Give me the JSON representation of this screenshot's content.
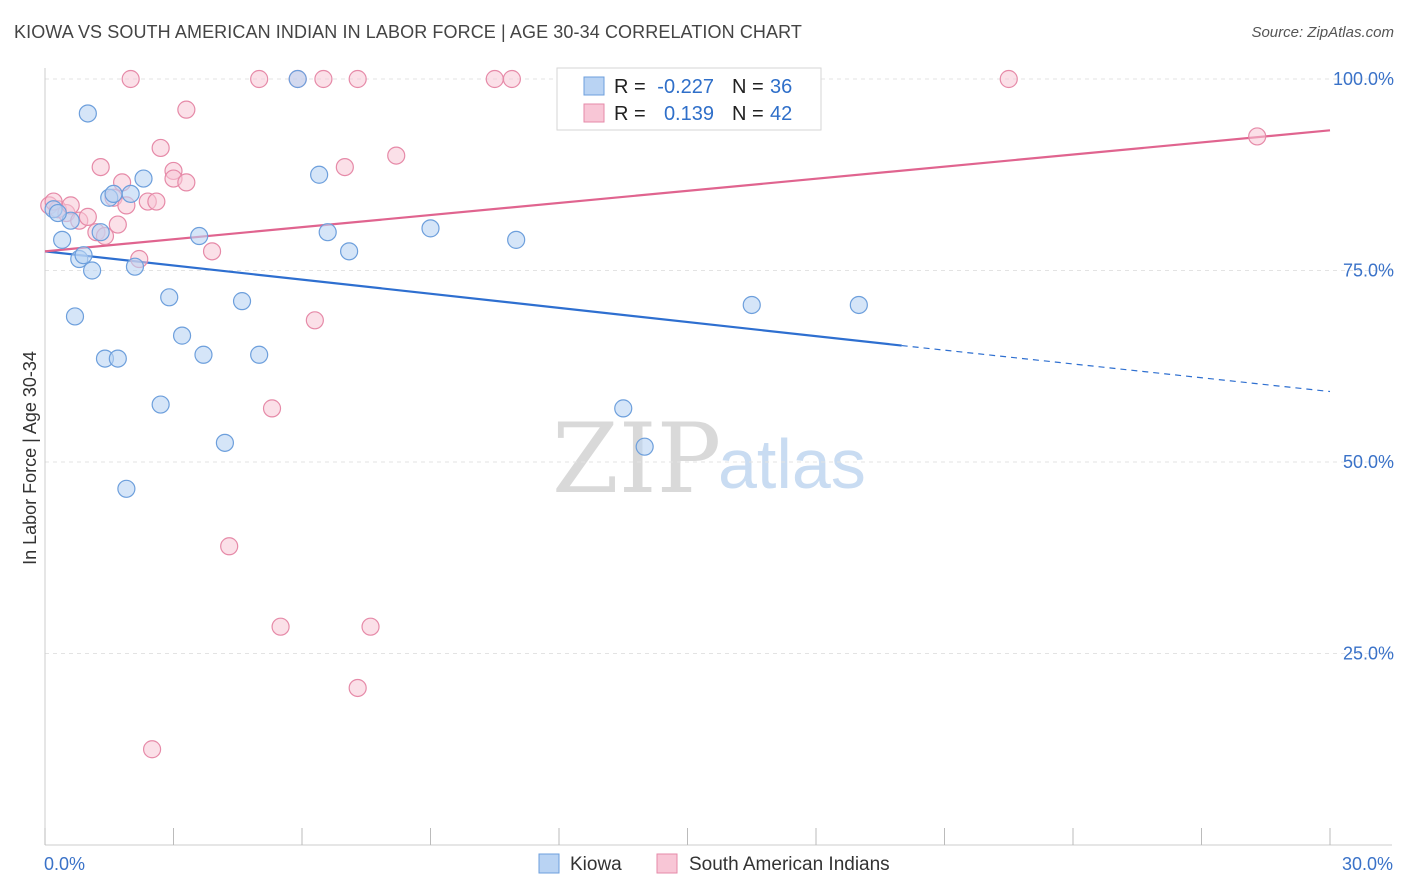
{
  "header": {
    "title": "KIOWA VS SOUTH AMERICAN INDIAN IN LABOR FORCE | AGE 30-34 CORRELATION CHART",
    "source": "Source: ZipAtlas.com"
  },
  "watermark": {
    "zip": "ZIP",
    "atlas": "atlas"
  },
  "colors": {
    "kiowa_fill": "#b9d3f3",
    "kiowa_stroke": "#6d9fdc",
    "kiowa_line": "#2e6fd0",
    "sai_fill": "#f8c6d6",
    "sai_stroke": "#e68aa8",
    "sai_line": "#e0648f",
    "tick_text": "#3a72c8",
    "grid": "#e3e3e3"
  },
  "stats": {
    "rows": [
      {
        "r_label": "R =",
        "r_value": "-0.227",
        "n_label": "N =",
        "n_value": "36"
      },
      {
        "r_label": "R =",
        "r_value": "0.139",
        "n_label": "N =",
        "n_value": "42"
      }
    ]
  },
  "chart_data": {
    "type": "scatter",
    "title": "KIOWA VS SOUTH AMERICAN INDIAN IN LABOR FORCE | AGE 30-34 CORRELATION CHART",
    "xlabel": "",
    "ylabel": "In Labor Force | Age 30-34",
    "xlim": [
      0,
      30
    ],
    "ylim": [
      0,
      100
    ],
    "x_tick_labels": [
      "0.0%",
      "30.0%"
    ],
    "y_ticks": [
      25,
      50,
      75,
      100
    ],
    "y_tick_labels": [
      "25.0%",
      "50.0%",
      "75.0%",
      "100.0%"
    ],
    "grid": true,
    "legend_position": "bottom",
    "series": [
      {
        "name": "Kiowa",
        "r": -0.227,
        "n": 36,
        "trend": {
          "x0": 0,
          "y0": 77.5,
          "x1": 20,
          "y1": 65.2,
          "dash_to_x": 30,
          "dash_to_y": 59.2
        },
        "points": [
          [
            0.2,
            83.0
          ],
          [
            0.4,
            79.0
          ],
          [
            0.6,
            81.5
          ],
          [
            0.7,
            69.0
          ],
          [
            0.8,
            76.5
          ],
          [
            1.0,
            95.5
          ],
          [
            1.1,
            75.0
          ],
          [
            1.3,
            80.0
          ],
          [
            1.4,
            63.5
          ],
          [
            1.5,
            84.5
          ],
          [
            1.6,
            85.0
          ],
          [
            1.7,
            63.5
          ],
          [
            1.9,
            46.5
          ],
          [
            2.0,
            85.0
          ],
          [
            2.1,
            75.5
          ],
          [
            2.3,
            87.0
          ],
          [
            2.7,
            57.5
          ],
          [
            2.9,
            71.5
          ],
          [
            3.2,
            66.5
          ],
          [
            3.6,
            79.5
          ],
          [
            3.7,
            64.0
          ],
          [
            4.2,
            52.5
          ],
          [
            4.6,
            71.0
          ],
          [
            5.0,
            64.0
          ],
          [
            5.9,
            100.0
          ],
          [
            6.4,
            87.5
          ],
          [
            6.6,
            80.0
          ],
          [
            7.1,
            77.5
          ],
          [
            9.0,
            80.5
          ],
          [
            11.0,
            79.0
          ],
          [
            13.5,
            57.0
          ],
          [
            14.0,
            52.0
          ],
          [
            16.5,
            70.5
          ],
          [
            19.0,
            70.5
          ],
          [
            0.3,
            82.5
          ],
          [
            0.9,
            77.0
          ]
        ]
      },
      {
        "name": "South American Indians",
        "r": 0.139,
        "n": 42,
        "trend": {
          "x0": 0,
          "y0": 77.5,
          "x1": 30,
          "y1": 93.3
        },
        "points": [
          [
            0.1,
            83.5
          ],
          [
            0.3,
            83.0
          ],
          [
            0.5,
            82.5
          ],
          [
            0.6,
            83.5
          ],
          [
            0.8,
            81.5
          ],
          [
            1.0,
            82.0
          ],
          [
            1.2,
            80.0
          ],
          [
            1.3,
            88.5
          ],
          [
            1.4,
            79.5
          ],
          [
            1.6,
            84.5
          ],
          [
            1.7,
            81.0
          ],
          [
            1.8,
            86.5
          ],
          [
            1.9,
            83.5
          ],
          [
            2.0,
            100.0
          ],
          [
            2.2,
            76.5
          ],
          [
            2.4,
            84.0
          ],
          [
            2.5,
            12.5
          ],
          [
            2.6,
            84.0
          ],
          [
            2.7,
            91.0
          ],
          [
            3.0,
            88.0
          ],
          [
            3.0,
            87.0
          ],
          [
            3.3,
            86.5
          ],
          [
            3.3,
            96.0
          ],
          [
            3.9,
            77.5
          ],
          [
            4.3,
            39.0
          ],
          [
            5.0,
            100.0
          ],
          [
            5.3,
            57.0
          ],
          [
            5.5,
            28.5
          ],
          [
            5.9,
            100.0
          ],
          [
            6.3,
            68.5
          ],
          [
            6.5,
            100.0
          ],
          [
            7.0,
            88.5
          ],
          [
            7.3,
            100.0
          ],
          [
            7.3,
            20.5
          ],
          [
            7.6,
            28.5
          ],
          [
            8.2,
            90.0
          ],
          [
            10.5,
            100.0
          ],
          [
            10.9,
            100.0
          ],
          [
            13.9,
            100.0
          ],
          [
            22.5,
            100.0
          ],
          [
            28.3,
            92.5
          ],
          [
            0.2,
            84.0
          ]
        ]
      }
    ]
  }
}
